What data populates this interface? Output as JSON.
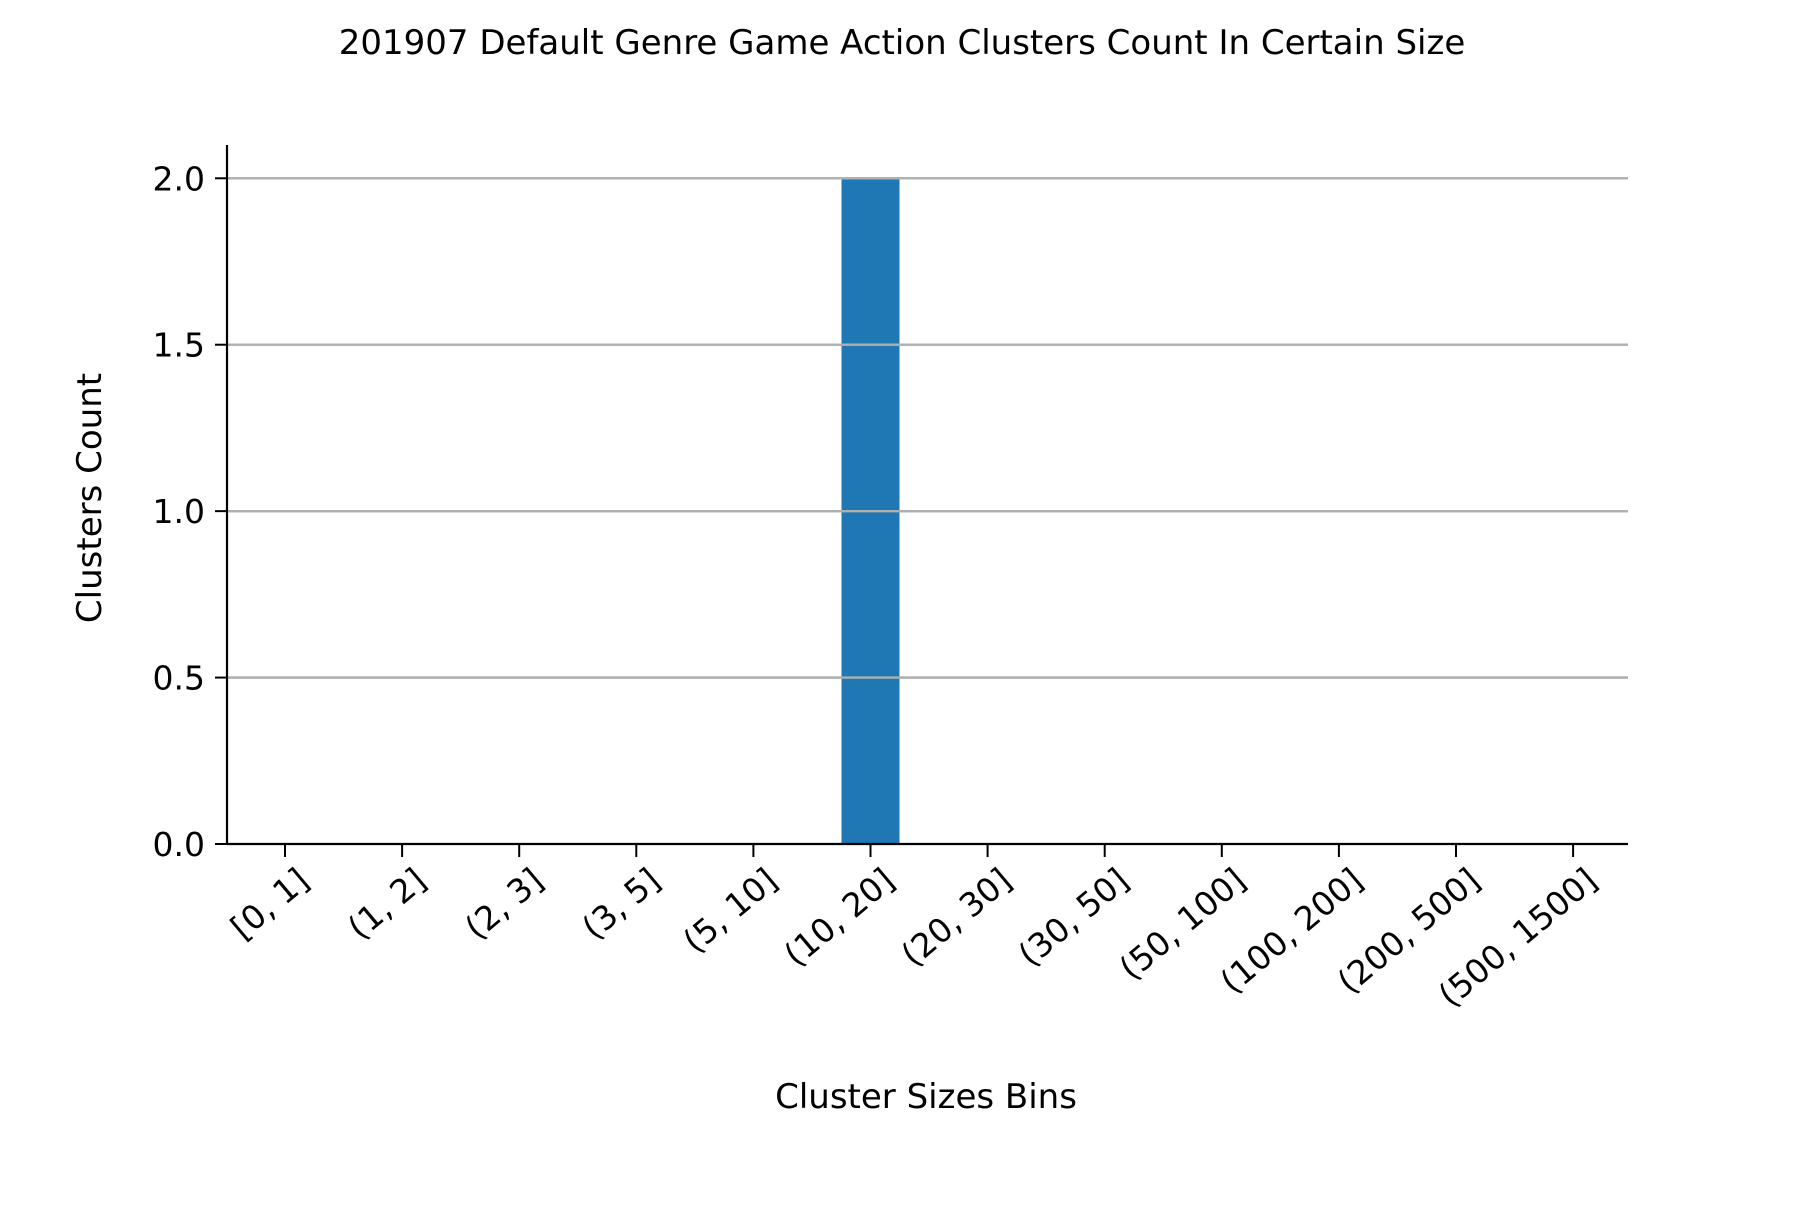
{
  "chart_data": {
    "type": "bar",
    "title": "201907 Default Genre Game Action Clusters Count In Certain Size",
    "xlabel": "Cluster Sizes Bins",
    "ylabel": "Clusters Count",
    "categories": [
      "[0, 1]",
      "(1, 2]",
      "(2, 3]",
      "(3, 5]",
      "(5, 10]",
      "(10, 20]",
      "(20, 30]",
      "(30, 50]",
      "(50, 100]",
      "(100, 200]",
      "(200, 500]",
      "(500, 1500]"
    ],
    "values": [
      0,
      0,
      0,
      0,
      0,
      2,
      0,
      0,
      0,
      0,
      0,
      0
    ],
    "ylim": [
      0,
      2.1
    ],
    "yticks": [
      "0.0",
      "0.5",
      "1.0",
      "1.5",
      "2.0"
    ],
    "grid": "y",
    "bar_color": "#1f77b4",
    "grid_color": "#b0b0b0"
  }
}
